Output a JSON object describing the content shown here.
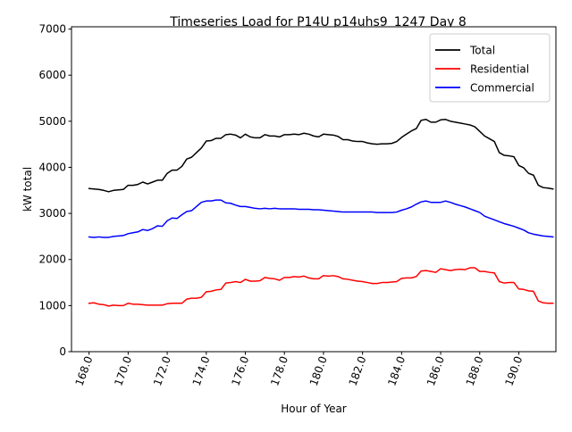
{
  "chart_data": {
    "type": "line",
    "title": "Timeseries Load for P14U p14uhs9_1247  Day 8",
    "xlabel": "Hour of Year",
    "ylabel": "kW total",
    "xlim": [
      167.1,
      191.9
    ],
    "ylim": [
      0,
      7050
    ],
    "xticks": [
      168,
      170,
      172,
      174,
      176,
      178,
      180,
      182,
      184,
      186,
      188,
      190
    ],
    "xtick_labels": [
      "168.0",
      "170.0",
      "172.0",
      "174.0",
      "176.0",
      "178.0",
      "180.0",
      "182.0",
      "184.0",
      "186.0",
      "188.0",
      "190.0"
    ],
    "yticks": [
      0,
      1000,
      2000,
      3000,
      4000,
      5000,
      6000,
      7000
    ],
    "ytick_labels": [
      "0",
      "1000",
      "2000",
      "3000",
      "4000",
      "5000",
      "6000",
      "7000"
    ],
    "legend_position": "top-right",
    "grid": false,
    "x": [
      168.0,
      168.25,
      168.5,
      168.75,
      169.0,
      169.25,
      169.5,
      169.75,
      170.0,
      170.25,
      170.5,
      170.75,
      171.0,
      171.25,
      171.5,
      171.75,
      172.0,
      172.25,
      172.5,
      172.75,
      173.0,
      173.25,
      173.5,
      173.75,
      174.0,
      174.25,
      174.5,
      174.75,
      175.0,
      175.25,
      175.5,
      175.75,
      176.0,
      176.25,
      176.5,
      176.75,
      177.0,
      177.25,
      177.5,
      177.75,
      178.0,
      178.25,
      178.5,
      178.75,
      179.0,
      179.25,
      179.5,
      179.75,
      180.0,
      180.25,
      180.5,
      180.75,
      181.0,
      181.25,
      181.5,
      181.75,
      182.0,
      182.25,
      182.5,
      182.75,
      183.0,
      183.25,
      183.5,
      183.75,
      184.0,
      184.25,
      184.5,
      184.75,
      185.0,
      185.25,
      185.5,
      185.75,
      186.0,
      186.25,
      186.5,
      186.75,
      187.0,
      187.25,
      187.5,
      187.75,
      188.0,
      188.25,
      188.5,
      188.75,
      189.0,
      189.25,
      189.5,
      189.75,
      190.0,
      190.25,
      190.5,
      190.75,
      191.0,
      191.25,
      191.5,
      191.75
    ],
    "series": [
      {
        "name": "Total",
        "color": "#000000",
        "values": [
          3540,
          3530,
          3520,
          3500,
          3470,
          3500,
          3510,
          3520,
          3610,
          3610,
          3630,
          3680,
          3640,
          3680,
          3720,
          3720,
          3870,
          3940,
          3940,
          4020,
          4180,
          4220,
          4320,
          4420,
          4570,
          4580,
          4630,
          4630,
          4710,
          4720,
          4700,
          4640,
          4720,
          4660,
          4640,
          4640,
          4710,
          4680,
          4680,
          4660,
          4710,
          4710,
          4720,
          4710,
          4740,
          4720,
          4680,
          4660,
          4720,
          4710,
          4700,
          4670,
          4600,
          4600,
          4570,
          4560,
          4560,
          4530,
          4510,
          4500,
          4510,
          4510,
          4520,
          4560,
          4650,
          4720,
          4790,
          4840,
          5020,
          5040,
          4980,
          4980,
          5030,
          5040,
          5000,
          4980,
          4960,
          4940,
          4920,
          4880,
          4780,
          4680,
          4620,
          4560,
          4320,
          4260,
          4250,
          4230,
          4040,
          3990,
          3870,
          3830,
          3610,
          3560,
          3550,
          3530
        ]
      },
      {
        "name": "Residential",
        "color": "#ff0000",
        "values": [
          1050,
          1060,
          1030,
          1020,
          990,
          1010,
          1000,
          1000,
          1050,
          1030,
          1030,
          1020,
          1010,
          1010,
          1010,
          1010,
          1040,
          1050,
          1050,
          1050,
          1140,
          1160,
          1160,
          1180,
          1300,
          1310,
          1340,
          1350,
          1490,
          1500,
          1520,
          1500,
          1570,
          1530,
          1530,
          1540,
          1610,
          1590,
          1580,
          1550,
          1610,
          1610,
          1630,
          1620,
          1640,
          1600,
          1580,
          1580,
          1650,
          1640,
          1650,
          1630,
          1580,
          1570,
          1550,
          1530,
          1520,
          1500,
          1480,
          1480,
          1500,
          1500,
          1510,
          1520,
          1590,
          1600,
          1600,
          1630,
          1750,
          1760,
          1740,
          1720,
          1800,
          1780,
          1760,
          1780,
          1790,
          1780,
          1820,
          1820,
          1740,
          1740,
          1720,
          1710,
          1520,
          1490,
          1500,
          1500,
          1360,
          1350,
          1320,
          1310,
          1100,
          1060,
          1050,
          1050
        ]
      },
      {
        "name": "Commercial",
        "color": "#0000ff",
        "values": [
          2490,
          2480,
          2490,
          2480,
          2480,
          2500,
          2510,
          2520,
          2560,
          2580,
          2600,
          2650,
          2630,
          2670,
          2730,
          2720,
          2840,
          2900,
          2890,
          2970,
          3040,
          3060,
          3150,
          3240,
          3270,
          3270,
          3290,
          3290,
          3230,
          3220,
          3180,
          3150,
          3150,
          3130,
          3110,
          3100,
          3110,
          3100,
          3110,
          3100,
          3100,
          3100,
          3100,
          3090,
          3090,
          3090,
          3080,
          3080,
          3070,
          3060,
          3050,
          3040,
          3030,
          3030,
          3030,
          3030,
          3030,
          3030,
          3030,
          3020,
          3020,
          3020,
          3020,
          3030,
          3070,
          3100,
          3140,
          3200,
          3250,
          3270,
          3240,
          3240,
          3240,
          3270,
          3240,
          3200,
          3170,
          3140,
          3100,
          3060,
          3020,
          2940,
          2900,
          2860,
          2820,
          2780,
          2750,
          2720,
          2680,
          2640,
          2580,
          2550,
          2530,
          2510,
          2500,
          2490
        ]
      }
    ]
  }
}
